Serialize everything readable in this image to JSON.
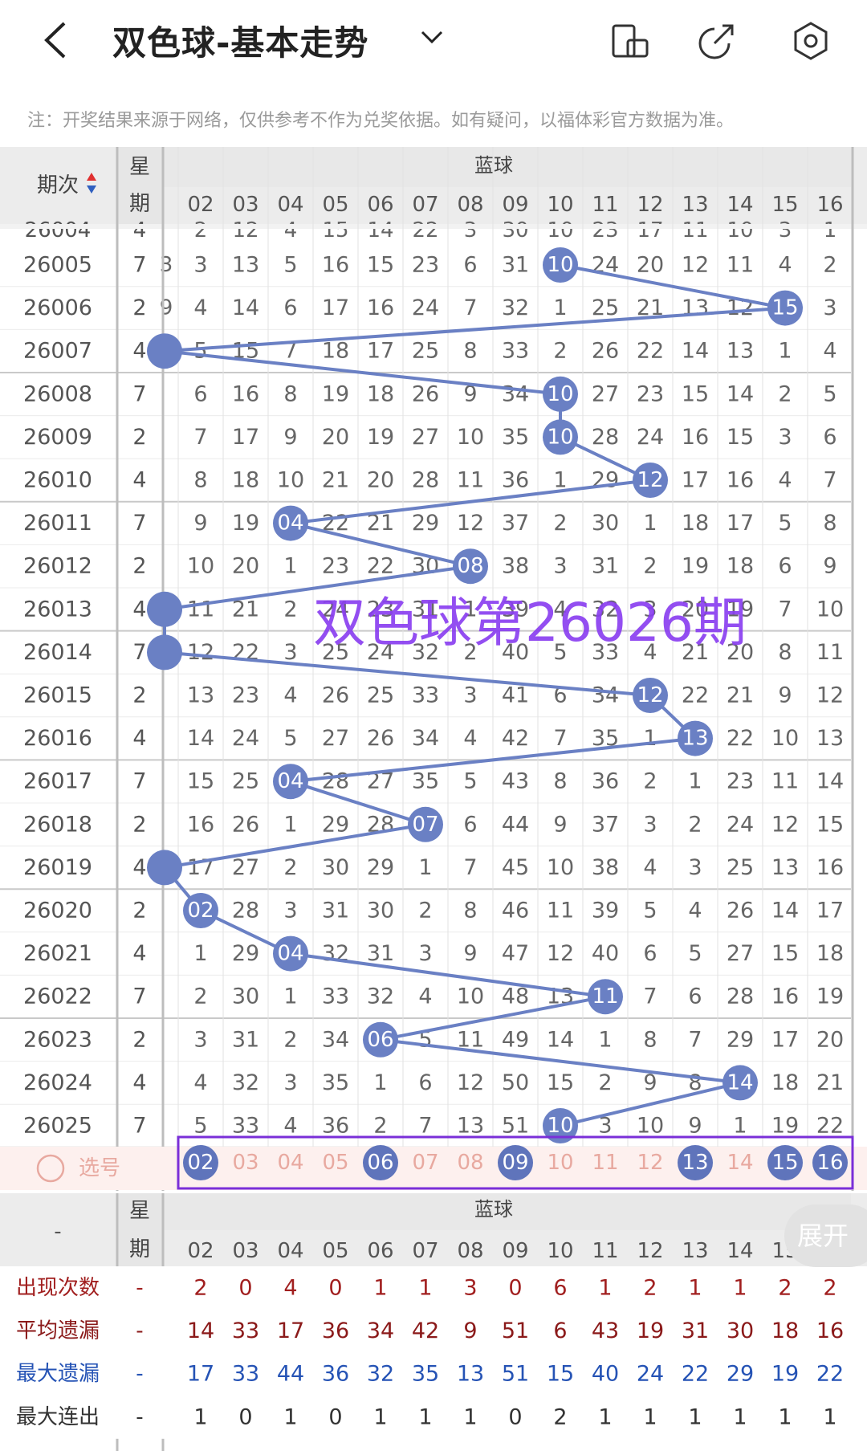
{
  "header": {
    "title": "双色球-基本走势",
    "back_icon": "chevron-left-icon",
    "dropdown_icon": "chevron-down-icon",
    "actions": [
      "phone-rotate-icon",
      "share-icon",
      "settings-icon"
    ]
  },
  "note": "注：开奖结果来源于网络，仅供参考不作为兑奖依据。如有疑问，以福体彩官方数据为准。",
  "table": {
    "col_period": "期次",
    "col_week": "星期",
    "group_title": "蓝球",
    "numbers": [
      "02",
      "03",
      "04",
      "05",
      "06",
      "07",
      "08",
      "09",
      "10",
      "11",
      "12",
      "13",
      "14",
      "15",
      "16"
    ],
    "partial_row": {
      "period": "26004",
      "week": "4",
      "cells": [
        "2",
        "12",
        "4",
        "15",
        "14",
        "22",
        "3",
        "30",
        "10",
        "23",
        "17",
        "11",
        "10",
        "3",
        "1"
      ]
    },
    "rows": [
      {
        "period": "26005",
        "week": "7",
        "edge": "3",
        "cells": [
          "3",
          "13",
          "5",
          "16",
          "15",
          "23",
          "6",
          "31",
          "10",
          "24",
          "20",
          "12",
          "11",
          "4",
          "2"
        ],
        "hit": 8
      },
      {
        "period": "26006",
        "week": "2",
        "edge": "9",
        "cells": [
          "4",
          "14",
          "6",
          "17",
          "16",
          "24",
          "7",
          "32",
          "1",
          "25",
          "21",
          "13",
          "12",
          "15",
          "3"
        ],
        "hit": 13
      },
      {
        "period": "26007",
        "week": "4",
        "edge": "",
        "cells": [
          "5",
          "15",
          "7",
          "18",
          "17",
          "25",
          "8",
          "33",
          "2",
          "26",
          "22",
          "14",
          "13",
          "1",
          "4"
        ],
        "hit": -1
      },
      {
        "period": "26008",
        "week": "7",
        "edge": "",
        "cells": [
          "6",
          "16",
          "8",
          "19",
          "18",
          "26",
          "9",
          "34",
          "10",
          "27",
          "23",
          "15",
          "14",
          "2",
          "5"
        ],
        "hit": 8
      },
      {
        "period": "26009",
        "week": "2",
        "edge": "",
        "cells": [
          "7",
          "17",
          "9",
          "20",
          "19",
          "27",
          "10",
          "35",
          "10",
          "28",
          "24",
          "16",
          "15",
          "3",
          "6"
        ],
        "hit": 8
      },
      {
        "period": "26010",
        "week": "4",
        "edge": "",
        "cells": [
          "8",
          "18",
          "10",
          "21",
          "20",
          "28",
          "11",
          "36",
          "1",
          "29",
          "12",
          "17",
          "16",
          "4",
          "7"
        ],
        "hit": 10
      },
      {
        "period": "26011",
        "week": "7",
        "edge": "",
        "cells": [
          "9",
          "19",
          "04",
          "22",
          "21",
          "29",
          "12",
          "37",
          "2",
          "30",
          "1",
          "18",
          "17",
          "5",
          "8"
        ],
        "hit": 2
      },
      {
        "period": "26012",
        "week": "2",
        "edge": "",
        "cells": [
          "10",
          "20",
          "1",
          "23",
          "22",
          "30",
          "08",
          "38",
          "3",
          "31",
          "2",
          "19",
          "18",
          "6",
          "9"
        ],
        "hit": 6
      },
      {
        "period": "26013",
        "week": "4",
        "edge": "",
        "cells": [
          "11",
          "21",
          "2",
          "24",
          "23",
          "31",
          "1",
          "39",
          "4",
          "32",
          "3",
          "20",
          "19",
          "7",
          "10"
        ],
        "hit": -1
      },
      {
        "period": "26014",
        "week": "7",
        "edge": "",
        "cells": [
          "12",
          "22",
          "3",
          "25",
          "24",
          "32",
          "2",
          "40",
          "5",
          "33",
          "4",
          "21",
          "20",
          "8",
          "11"
        ],
        "hit": -1
      },
      {
        "period": "26015",
        "week": "2",
        "edge": "",
        "cells": [
          "13",
          "23",
          "4",
          "26",
          "25",
          "33",
          "3",
          "41",
          "6",
          "34",
          "12",
          "22",
          "21",
          "9",
          "12"
        ],
        "hit": 10
      },
      {
        "period": "26016",
        "week": "4",
        "edge": "",
        "cells": [
          "14",
          "24",
          "5",
          "27",
          "26",
          "34",
          "4",
          "42",
          "7",
          "35",
          "1",
          "13",
          "22",
          "10",
          "13"
        ],
        "hit": 11
      },
      {
        "period": "26017",
        "week": "7",
        "edge": "",
        "cells": [
          "15",
          "25",
          "04",
          "28",
          "27",
          "35",
          "5",
          "43",
          "8",
          "36",
          "2",
          "1",
          "23",
          "11",
          "14"
        ],
        "hit": 2
      },
      {
        "period": "26018",
        "week": "2",
        "edge": "",
        "cells": [
          "16",
          "26",
          "1",
          "29",
          "28",
          "07",
          "6",
          "44",
          "9",
          "37",
          "3",
          "2",
          "24",
          "12",
          "15"
        ],
        "hit": 5
      },
      {
        "period": "26019",
        "week": "4",
        "edge": "",
        "cells": [
          "17",
          "27",
          "2",
          "30",
          "29",
          "1",
          "7",
          "45",
          "10",
          "38",
          "4",
          "3",
          "25",
          "13",
          "16"
        ],
        "hit": -1
      },
      {
        "period": "26020",
        "week": "2",
        "edge": "",
        "cells": [
          "02",
          "28",
          "3",
          "31",
          "30",
          "2",
          "8",
          "46",
          "11",
          "39",
          "5",
          "4",
          "26",
          "14",
          "17"
        ],
        "hit": 0
      },
      {
        "period": "26021",
        "week": "4",
        "edge": "",
        "cells": [
          "1",
          "29",
          "04",
          "32",
          "31",
          "3",
          "9",
          "47",
          "12",
          "40",
          "6",
          "5",
          "27",
          "15",
          "18"
        ],
        "hit": 2
      },
      {
        "period": "26022",
        "week": "7",
        "edge": "",
        "cells": [
          "2",
          "30",
          "1",
          "33",
          "32",
          "4",
          "10",
          "48",
          "13",
          "11",
          "7",
          "6",
          "28",
          "16",
          "19"
        ],
        "hit": 9
      },
      {
        "period": "26023",
        "week": "2",
        "edge": "",
        "cells": [
          "3",
          "31",
          "2",
          "34",
          "06",
          "5",
          "11",
          "49",
          "14",
          "1",
          "8",
          "7",
          "29",
          "17",
          "20"
        ],
        "hit": 4
      },
      {
        "period": "26024",
        "week": "4",
        "edge": "",
        "cells": [
          "4",
          "32",
          "3",
          "35",
          "1",
          "6",
          "12",
          "50",
          "15",
          "2",
          "9",
          "8",
          "14",
          "18",
          "21"
        ],
        "hit": 12
      },
      {
        "period": "26025",
        "week": "7",
        "edge": "",
        "cells": [
          "5",
          "33",
          "4",
          "36",
          "2",
          "7",
          "13",
          "51",
          "10",
          "3",
          "10",
          "9",
          "1",
          "19",
          "22"
        ],
        "hit": 8
      }
    ],
    "select_row": {
      "label": "选号",
      "picked": [
        0,
        4,
        7,
        11,
        13,
        14
      ]
    }
  },
  "stats": {
    "col_period": "-",
    "col_week": "星期",
    "group_title": "蓝球",
    "rows": [
      {
        "label": "出现次数",
        "dash": "-",
        "values": [
          "2",
          "0",
          "4",
          "0",
          "1",
          "1",
          "3",
          "0",
          "6",
          "1",
          "2",
          "1",
          "1",
          "2",
          "2"
        ],
        "color": "#a11f1f"
      },
      {
        "label": "平均遗漏",
        "dash": "-",
        "values": [
          "14",
          "33",
          "17",
          "36",
          "34",
          "42",
          "9",
          "51",
          "6",
          "43",
          "19",
          "31",
          "30",
          "18",
          "16"
        ],
        "color": "#8b1a1a"
      },
      {
        "label": "最大遗漏",
        "dash": "-",
        "values": [
          "17",
          "33",
          "44",
          "36",
          "32",
          "35",
          "13",
          "51",
          "15",
          "40",
          "24",
          "22",
          "29",
          "19",
          "22"
        ],
        "color": "#2553b5"
      },
      {
        "label": "最大连出",
        "dash": "-",
        "values": [
          "1",
          "0",
          "1",
          "0",
          "1",
          "1",
          "1",
          "0",
          "2",
          "1",
          "1",
          "1",
          "1",
          "1",
          "1"
        ],
        "color": "#333333"
      }
    ],
    "expand_label": "展开"
  },
  "watermark": "双色球第26026期",
  "colors": {
    "ball": "#6a80c4",
    "line": "#6a80c4",
    "select_purple": "#7a2fd8",
    "pick_fg": "#e8a9a0"
  }
}
